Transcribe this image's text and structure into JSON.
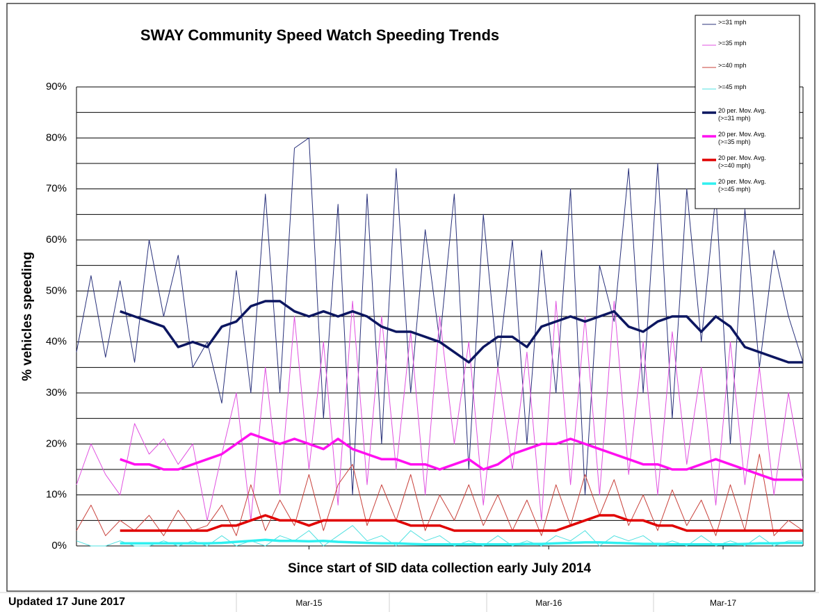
{
  "chart_data": {
    "type": "line",
    "title": "SWAY Community Speed Watch Speeding Trends",
    "y_label": "% vehicles speeding",
    "x_label": "Since start of SID data collection early July 2014",
    "footer": "Updated 17 June 2017",
    "xlim": [
      0,
      100
    ],
    "xticks": [
      {
        "value": 32,
        "label": "Mar-15"
      },
      {
        "value": 65,
        "label": "Mar-16"
      },
      {
        "value": 89,
        "label": "Mar-17"
      }
    ],
    "ylim": [
      0,
      90
    ],
    "yticks": [
      {
        "value": 0,
        "label": "0%"
      },
      {
        "value": 10,
        "label": "10%"
      },
      {
        "value": 20,
        "label": "20%"
      },
      {
        "value": 30,
        "label": "30%"
      },
      {
        "value": 40,
        "label": "40%"
      },
      {
        "value": 50,
        "label": "50%"
      },
      {
        "value": 60,
        "label": "60%"
      },
      {
        "value": 70,
        "label": "70%"
      },
      {
        "value": 80,
        "label": "80%"
      },
      {
        "value": 90,
        "label": "90%"
      }
    ],
    "y_minor_ticks": [
      5,
      15,
      25,
      35,
      45,
      55,
      65,
      75,
      85
    ],
    "grid": true,
    "legend": "top-right",
    "x": [
      0,
      2,
      4,
      6,
      8,
      10,
      12,
      14,
      16,
      18,
      20,
      22,
      24,
      26,
      28,
      30,
      32,
      34,
      36,
      38,
      40,
      42,
      44,
      46,
      48,
      50,
      52,
      54,
      56,
      58,
      60,
      62,
      64,
      66,
      68,
      70,
      72,
      74,
      76,
      78,
      80,
      82,
      84,
      86,
      88,
      90,
      92,
      94,
      96,
      98,
      100
    ],
    "series": [
      {
        "name": ">=31 mph",
        "color": "#28307a",
        "width": 1,
        "values": [
          38,
          53,
          37,
          52,
          36,
          60,
          45,
          57,
          35,
          40,
          28,
          54,
          30,
          69,
          30,
          78,
          80,
          25,
          67,
          10,
          69,
          20,
          74,
          30,
          62,
          40,
          69,
          15,
          65,
          35,
          60,
          20,
          58,
          30,
          70,
          10,
          55,
          44,
          74,
          30,
          75,
          25,
          70,
          40,
          69,
          20,
          66,
          35,
          58,
          45,
          36
        ]
      },
      {
        "name": ">=35 mph",
        "color": "#e050e0",
        "width": 1,
        "values": [
          12,
          20,
          14,
          10,
          24,
          18,
          21,
          16,
          20,
          5,
          18,
          30,
          5,
          35,
          10,
          45,
          15,
          40,
          8,
          48,
          12,
          45,
          15,
          42,
          10,
          45,
          20,
          40,
          8,
          35,
          15,
          38,
          5,
          48,
          12,
          45,
          10,
          48,
          14,
          40,
          10,
          42,
          16,
          35,
          8,
          40,
          12,
          35,
          10,
          30,
          13
        ]
      },
      {
        "name": ">=40 mph",
        "color": "#c8403a",
        "width": 1,
        "values": [
          3,
          8,
          2,
          5,
          3,
          6,
          2,
          7,
          3,
          4,
          8,
          2,
          12,
          3,
          9,
          4,
          14,
          3,
          12,
          16,
          4,
          12,
          5,
          14,
          3,
          10,
          5,
          12,
          4,
          10,
          3,
          9,
          2,
          12,
          4,
          14,
          6,
          13,
          4,
          10,
          3,
          11,
          4,
          9,
          2,
          12,
          3,
          18,
          2,
          5,
          3
        ]
      },
      {
        "name": ">=45 mph",
        "color": "#50e0e0",
        "width": 1,
        "values": [
          1,
          0,
          0,
          1,
          0,
          0,
          1,
          0,
          1,
          0,
          2,
          0,
          1,
          0,
          2,
          1,
          3,
          0,
          2,
          4,
          1,
          2,
          0,
          3,
          1,
          2,
          0,
          1,
          0,
          2,
          0,
          1,
          0,
          2,
          1,
          3,
          0,
          2,
          1,
          2,
          0,
          1,
          0,
          2,
          0,
          1,
          0,
          2,
          0,
          1,
          1
        ]
      },
      {
        "name": "20 per. Mov. Avg. (>=31 mph)",
        "color": "#0c1660",
        "width": 3.5,
        "values": [
          null,
          null,
          null,
          46,
          45,
          44,
          43,
          39,
          40,
          39,
          43,
          44,
          47,
          48,
          48,
          46,
          45,
          46,
          45,
          46,
          45,
          43,
          42,
          42,
          41,
          40,
          38,
          36,
          39,
          41,
          41,
          39,
          43,
          44,
          45,
          44,
          45,
          46,
          43,
          42,
          44,
          45,
          45,
          42,
          45,
          43,
          39,
          38,
          37,
          36,
          36
        ]
      },
      {
        "name": "20 per. Mov. Avg. (>=35 mph)",
        "color": "#ff10f0",
        "width": 3.5,
        "values": [
          null,
          null,
          null,
          17,
          16,
          16,
          15,
          15,
          16,
          17,
          18,
          20,
          22,
          21,
          20,
          21,
          20,
          19,
          21,
          19,
          18,
          17,
          17,
          16,
          16,
          15,
          16,
          17,
          15,
          16,
          18,
          19,
          20,
          20,
          21,
          20,
          19,
          18,
          17,
          16,
          16,
          15,
          15,
          16,
          17,
          16,
          15,
          14,
          13,
          13,
          13
        ]
      },
      {
        "name": "20 per. Mov. Avg. (>=40 mph)",
        "color": "#e00000",
        "width": 3.5,
        "values": [
          null,
          null,
          null,
          3,
          3,
          3,
          3,
          3,
          3,
          3,
          4,
          4,
          5,
          6,
          5,
          5,
          4,
          5,
          5,
          5,
          5,
          5,
          5,
          4,
          4,
          4,
          3,
          3,
          3,
          3,
          3,
          3,
          3,
          3,
          4,
          5,
          6,
          6,
          5,
          5,
          4,
          4,
          3,
          3,
          3,
          3,
          3,
          3,
          3,
          3,
          3
        ]
      },
      {
        "name": "20 per. Mov. Avg. (>=45 mph)",
        "color": "#30f0f0",
        "width": 3.5,
        "values": [
          null,
          null,
          null,
          0.5,
          0.5,
          0.5,
          0.5,
          0.5,
          0.5,
          0.5,
          0.6,
          0.8,
          1,
          1.2,
          1,
          1,
          0.9,
          1,
          0.8,
          0.7,
          0.6,
          0.5,
          0.5,
          0.4,
          0.3,
          0.3,
          0.3,
          0.3,
          0.3,
          0.3,
          0.3,
          0.4,
          0.4,
          0.5,
          0.6,
          0.7,
          0.7,
          0.6,
          0.5,
          0.4,
          0.4,
          0.3,
          0.3,
          0.3,
          0.3,
          0.3,
          0.4,
          0.5,
          0.5,
          0.6,
          0.6
        ]
      }
    ]
  }
}
